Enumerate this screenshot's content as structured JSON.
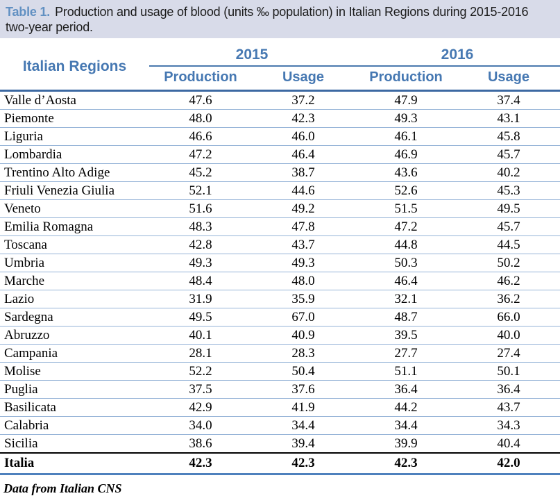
{
  "caption": {
    "label": "Table 1.",
    "text": "Production and usage of blood (units ‰ population) in Italian Regions during 2015-2016 two-year period."
  },
  "table": {
    "region_header": "Italian Regions",
    "year_groups": [
      {
        "year": "2015",
        "columns": [
          "Production",
          "Usage"
        ]
      },
      {
        "year": "2016",
        "columns": [
          "Production",
          "Usage"
        ]
      }
    ],
    "rows": [
      {
        "region": "Valle d’Aosta",
        "values": [
          "47.6",
          "37.2",
          "47.9",
          "37.4"
        ]
      },
      {
        "region": "Piemonte",
        "values": [
          "48.0",
          "42.3",
          "49.3",
          "43.1"
        ]
      },
      {
        "region": "Liguria",
        "values": [
          "46.6",
          "46.0",
          "46.1",
          "45.8"
        ]
      },
      {
        "region": "Lombardia",
        "values": [
          "47.2",
          "46.4",
          "46.9",
          "45.7"
        ]
      },
      {
        "region": "Trentino Alto Adige",
        "values": [
          "45.2",
          "38.7",
          "43.6",
          "40.2"
        ]
      },
      {
        "region": "Friuli Venezia Giulia",
        "values": [
          "52.1",
          "44.6",
          "52.6",
          "45.3"
        ]
      },
      {
        "region": "Veneto",
        "values": [
          "51.6",
          "49.2",
          "51.5",
          "49.5"
        ]
      },
      {
        "region": "Emilia Romagna",
        "values": [
          "48.3",
          "47.8",
          "47.2",
          "45.7"
        ]
      },
      {
        "region": "Toscana",
        "values": [
          "42.8",
          "43.7",
          "44.8",
          "44.5"
        ]
      },
      {
        "region": "Umbria",
        "values": [
          "49.3",
          "49.3",
          "50.3",
          "50.2"
        ]
      },
      {
        "region": "Marche",
        "values": [
          "48.4",
          "48.0",
          "46.4",
          "46.2"
        ]
      },
      {
        "region": "Lazio",
        "values": [
          "31.9",
          "35.9",
          "32.1",
          "36.2"
        ]
      },
      {
        "region": "Sardegna",
        "values": [
          "49.5",
          "67.0",
          "48.7",
          "66.0"
        ]
      },
      {
        "region": "Abruzzo",
        "values": [
          "40.1",
          "40.9",
          "39.5",
          "40.0"
        ]
      },
      {
        "region": "Campania",
        "values": [
          "28.1",
          "28.3",
          "27.7",
          "27.4"
        ]
      },
      {
        "region": "Molise",
        "values": [
          "52.2",
          "50.4",
          "51.1",
          "50.1"
        ]
      },
      {
        "region": "Puglia",
        "values": [
          "37.5",
          "37.6",
          "36.4",
          "36.4"
        ]
      },
      {
        "region": "Basilicata",
        "values": [
          "42.9",
          "41.9",
          "44.2",
          "43.7"
        ]
      },
      {
        "region": "Calabria",
        "values": [
          "34.0",
          "34.4",
          "34.4",
          "34.3"
        ]
      },
      {
        "region": "Sicilia",
        "values": [
          "38.6",
          "39.4",
          "39.9",
          "40.4"
        ]
      }
    ],
    "total_row": {
      "region": "Italia",
      "values": [
        "42.3",
        "42.3",
        "42.3",
        "42.0"
      ]
    }
  },
  "footnote": "Data from Italian CNS",
  "colors": {
    "caption_background": "#d8dbe9",
    "caption_label_blue": "#6190c2",
    "header_text_blue": "#4678b2",
    "year_underline": "#4a78ae",
    "header_underline": "#3c69a2",
    "row_separator": "#95b3d7",
    "total_top_border": "#000000",
    "table_bottom_border": "#4f81bd"
  }
}
